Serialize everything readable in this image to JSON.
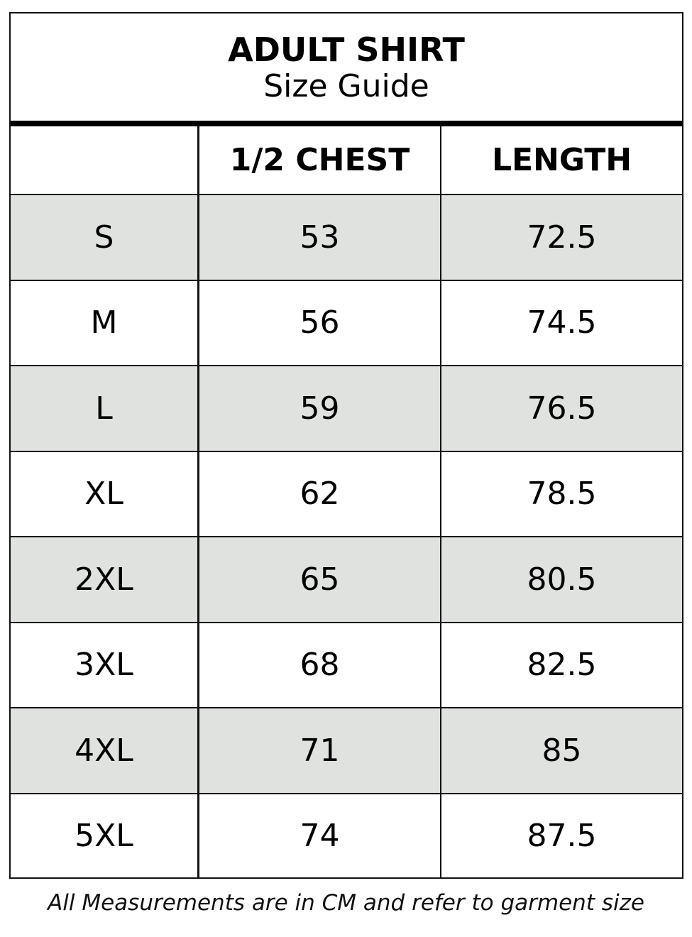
{
  "title": {
    "main": "ADULT SHIRT",
    "sub": "Size Guide"
  },
  "table": {
    "headers": [
      "",
      "1/2 CHEST",
      "LENGTH"
    ],
    "rows": [
      [
        "S",
        "53",
        "72.5"
      ],
      [
        "M",
        "56",
        "74.5"
      ],
      [
        "L",
        "59",
        "76.5"
      ],
      [
        "XL",
        "62",
        "78.5"
      ],
      [
        "2XL",
        "65",
        "80.5"
      ],
      [
        "3XL",
        "68",
        "82.5"
      ],
      [
        "4XL",
        "71",
        "85"
      ],
      [
        "5XL",
        "74",
        "87.5"
      ]
    ]
  },
  "footer": {
    "before": "All Measurements are in ",
    "unit": "CM",
    "after": " and refer to garment size"
  },
  "colors": {
    "shaded_row": "#e0e2e0",
    "border": "#111111"
  }
}
